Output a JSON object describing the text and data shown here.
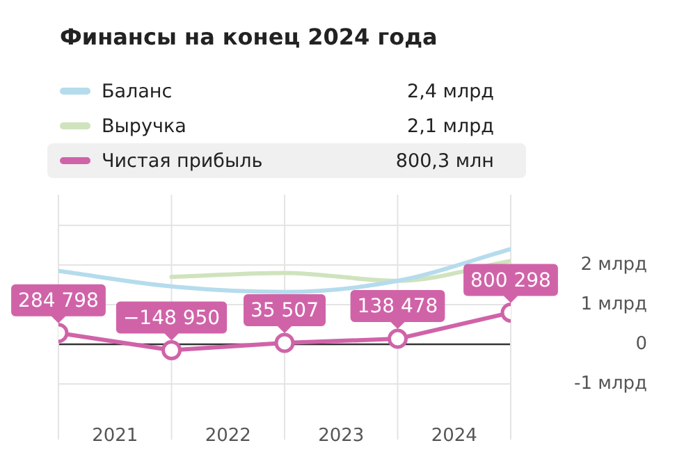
{
  "chart_data": {
    "type": "line",
    "title": "Финансы на конец 2024 года",
    "x": [
      2021,
      2022,
      2023,
      2024,
      2025
    ],
    "xlim": [
      2021,
      2025
    ],
    "xticks": [
      {
        "value": 2021.5,
        "label": "2021"
      },
      {
        "value": 2022.5,
        "label": "2022"
      },
      {
        "value": 2023.5,
        "label": "2023"
      },
      {
        "value": 2024.5,
        "label": "2024"
      }
    ],
    "ylim": [
      -1,
      3
    ],
    "yticks": [
      {
        "value": -1,
        "label": "-1 млрд"
      },
      {
        "value": 0,
        "label": "0"
      },
      {
        "value": 1,
        "label": "1 млрд"
      },
      {
        "value": 2,
        "label": "2 млрд"
      },
      {
        "value": 3,
        "label": null
      }
    ],
    "series": [
      {
        "name": "Баланс",
        "color": "#b5dcec",
        "values": [
          1.85,
          1.46,
          1.32,
          1.6,
          2.4
        ]
      },
      {
        "name": "Выручка",
        "color": "#cfe3bd",
        "values": [
          null,
          1.7,
          1.8,
          1.6,
          2.1
        ]
      },
      {
        "name": "Чистая прибыль",
        "color": "#d063a8",
        "values": [
          0.284798,
          -0.14895,
          0.035507,
          0.138478,
          0.800298
        ],
        "marker": "circle"
      }
    ],
    "annotations": [
      "2,4 млрд",
      "2,1 млрд",
      "800,3 млн",
      {
        "text": "284 798",
        "x": 2021,
        "y": 0.284798
      },
      {
        "text": "−148 950",
        "x": 2022,
        "y": -0.14895
      },
      {
        "text": "35 507",
        "x": 2023,
        "y": 0.035507
      },
      {
        "text": "138 478",
        "x": 2024,
        "y": 0.138478
      },
      {
        "text": "800 298",
        "x": 2025,
        "y": 0.800298
      }
    ],
    "ref_lines": [
      {
        "axis": "y",
        "value": 0,
        "color": "#333333"
      }
    ],
    "grid": true,
    "legend": "top"
  }
}
